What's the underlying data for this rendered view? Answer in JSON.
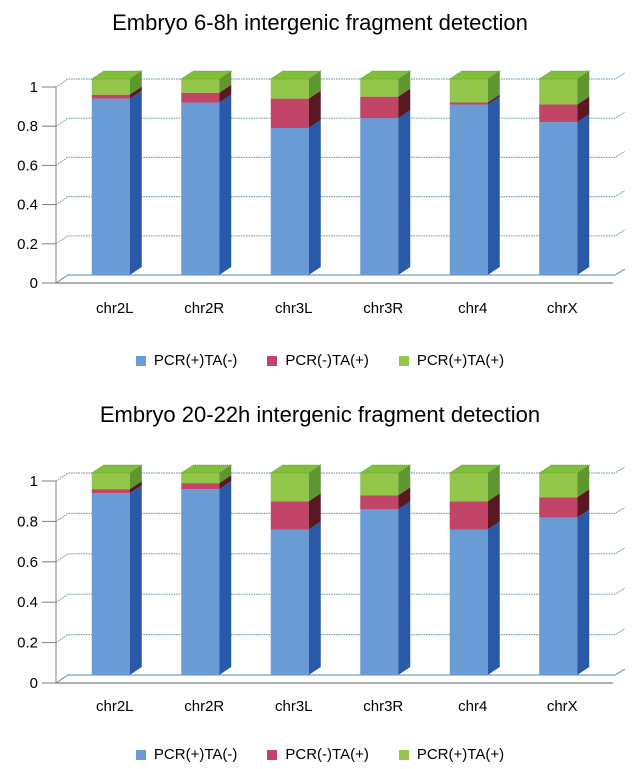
{
  "chart_data": [
    {
      "type": "bar",
      "stacked": true,
      "title": "Embryo 6-8h intergenic fragment detection",
      "categories": [
        "chr2L",
        "chr2R",
        "chr3L",
        "chr3R",
        "chr4",
        "chrX"
      ],
      "series": [
        {
          "name": "PCR(+)TA(-)",
          "values": [
            0.9,
            0.88,
            0.75,
            0.8,
            0.87,
            0.78
          ]
        },
        {
          "name": "PCR(-)TA(+)",
          "values": [
            0.02,
            0.05,
            0.15,
            0.11,
            0.01,
            0.09
          ]
        },
        {
          "name": "PCR(+)TA(+)",
          "values": [
            0.08,
            0.07,
            0.1,
            0.09,
            0.12,
            0.13
          ]
        }
      ],
      "yticks": [
        "0",
        "0.2",
        "0.4",
        "0.6",
        "0.8",
        "1"
      ],
      "ylim": [
        0,
        1
      ],
      "grid": true,
      "legend": "bottom"
    },
    {
      "type": "bar",
      "stacked": true,
      "title": "Embryo 20-22h intergenic fragment detection",
      "categories": [
        "chr2L",
        "chr2R",
        "chr3L",
        "chr3R",
        "chr4",
        "chrX"
      ],
      "series": [
        {
          "name": "PCR(+)TA(-)",
          "values": [
            0.9,
            0.92,
            0.72,
            0.82,
            0.72,
            0.78
          ]
        },
        {
          "name": "PCR(-)TA(+)",
          "values": [
            0.02,
            0.03,
            0.14,
            0.07,
            0.14,
            0.1
          ]
        },
        {
          "name": "PCR(+)TA(+)",
          "values": [
            0.08,
            0.05,
            0.14,
            0.11,
            0.14,
            0.12
          ]
        }
      ],
      "yticks": [
        "0",
        "0.2",
        "0.4",
        "0.6",
        "0.8",
        "1"
      ],
      "ylim": [
        0,
        1
      ],
      "grid": true,
      "legend": "bottom"
    }
  ],
  "colors": {
    "series_front": [
      "#6a9bd4",
      "#c24466",
      "#93c64a"
    ],
    "series_side": [
      "#2a59a8",
      "#5a1822",
      "#5e9630"
    ],
    "series_top": [
      "#6a9bd4",
      "#c24466",
      "#7fbf3a"
    ],
    "grid": "#7aa0b0",
    "axis": "#7f7f7f"
  }
}
